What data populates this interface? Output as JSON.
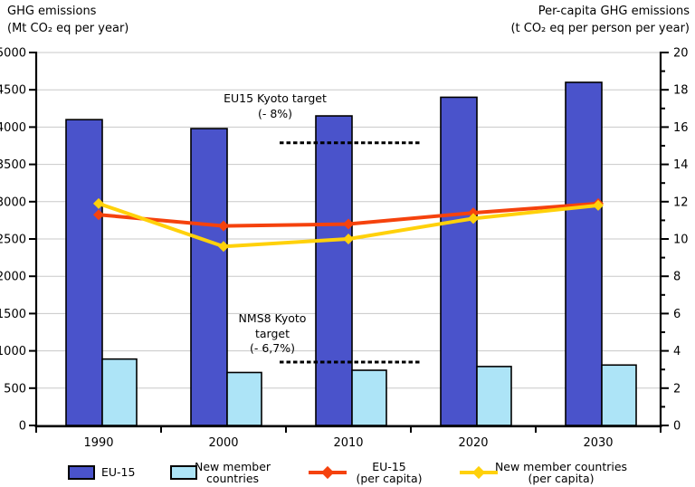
{
  "titles": {
    "left_line1": "GHG emissions",
    "left_line2": "(Mt CO₂ eq per year)",
    "right_line1": "Per-capita GHG emissions",
    "right_line2": "(t CO₂ eq per person per year)"
  },
  "colors": {
    "eu15_bar": "#4a53cb",
    "nms_bar": "#ade4f7",
    "eu15_line": "#f5420d",
    "nms_line": "#ffd10a",
    "gridline": "#c8c8c8",
    "axis": "#000000"
  },
  "chart_data": {
    "type": "bar+line",
    "title": "",
    "categories": [
      "1990",
      "2000",
      "2010",
      "2020",
      "2030"
    ],
    "left_axis": {
      "label": "GHG emissions (Mt CO₂ eq per year)",
      "range": [
        0,
        5000
      ],
      "tick_step": 500,
      "ticks": [
        0,
        500,
        1000,
        1500,
        2000,
        2500,
        3000,
        3500,
        4000,
        4500,
        5000
      ]
    },
    "right_axis": {
      "label": "Per-capita GHG emissions (t CO₂ eq per person per year)",
      "range": [
        0,
        20
      ],
      "tick_step": 2,
      "ticks": [
        0,
        2,
        4,
        6,
        8,
        10,
        12,
        14,
        16,
        18,
        20
      ]
    },
    "bar_series": [
      {
        "name": "EU-15",
        "axis": "left",
        "color": "#4a53cb",
        "values": [
          4100,
          3980,
          4150,
          4400,
          4600
        ]
      },
      {
        "name": "New member countries",
        "axis": "left",
        "color": "#ade4f7",
        "values": [
          890,
          710,
          740,
          790,
          810
        ]
      }
    ],
    "line_series": [
      {
        "name": "EU-15 (per capita)",
        "axis": "right",
        "color": "#f5420d",
        "marker": "diamond",
        "values": [
          11.3,
          10.7,
          10.8,
          11.4,
          11.9
        ]
      },
      {
        "name": "New member countries (per capita)",
        "axis": "right",
        "color": "#ffd10a",
        "marker": "diamond",
        "values": [
          11.9,
          9.6,
          10.0,
          11.1,
          11.8
        ]
      }
    ],
    "annotations": [
      {
        "name": "eu15-kyoto-target",
        "lines": [
          "EU15 Kyoto target",
          "(- 8%)"
        ],
        "value": 3790,
        "axis": "left"
      },
      {
        "name": "nms8-kyoto-target",
        "lines": [
          "NMS8 Kyoto",
          "target",
          "(- 6,7%)"
        ],
        "value": 850,
        "axis": "left"
      }
    ],
    "grid": "horizontal",
    "legend_position": "bottom"
  },
  "legend": {
    "items": [
      {
        "label_lines": [
          "EU-15"
        ],
        "swatch": "bar",
        "color": "#4a53cb"
      },
      {
        "label_lines": [
          "New member",
          "countries"
        ],
        "swatch": "bar",
        "color": "#ade4f7"
      },
      {
        "label_lines": [
          "EU-15",
          "(per capita)"
        ],
        "swatch": "line",
        "color": "#f5420d"
      },
      {
        "label_lines": [
          "New member countries",
          "(per capita)"
        ],
        "swatch": "line",
        "color": "#ffd10a"
      }
    ]
  }
}
